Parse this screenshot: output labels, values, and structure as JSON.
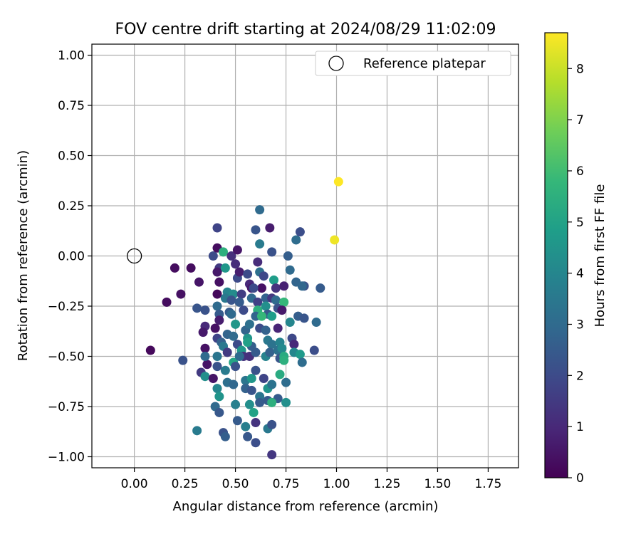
{
  "chart_data": {
    "type": "scatter",
    "title": "FOV centre drift starting at 2024/08/29 11:02:09",
    "xlabel": "Angular distance from reference (arcmin)",
    "ylabel": "Rotation from reference (arcmin)",
    "xlim": [
      -0.21,
      1.9
    ],
    "ylim": [
      -1.055,
      1.055
    ],
    "xticks": [
      0.0,
      0.25,
      0.5,
      0.75,
      1.0,
      1.25,
      1.5,
      1.75
    ],
    "xtick_labels": [
      "0.00",
      "0.25",
      "0.50",
      "0.75",
      "1.00",
      "1.25",
      "1.50",
      "1.75"
    ],
    "yticks": [
      -1.0,
      -0.75,
      -0.5,
      -0.25,
      0.0,
      0.25,
      0.5,
      0.75,
      1.0
    ],
    "ytick_labels": [
      "−1.00",
      "−0.75",
      "−0.50",
      "−0.25",
      "0.00",
      "0.25",
      "0.50",
      "0.75",
      "1.00"
    ],
    "grid": true,
    "legend": {
      "placement": "top-right",
      "entries": [
        "Reference platepar"
      ]
    },
    "reference_point": {
      "label": "Reference platepar",
      "x": 0.0,
      "y": 0.0,
      "marker": "hollow-circle"
    },
    "colorbar": {
      "label": "Hours from first FF file",
      "min": 0,
      "max": 8.7,
      "ticks": [
        0,
        1,
        2,
        3,
        4,
        5,
        6,
        7,
        8
      ],
      "tick_labels": [
        "0",
        "1",
        "2",
        "3",
        "4",
        "5",
        "6",
        "7",
        "8"
      ],
      "colormap": "viridis",
      "colors": [
        "#440154",
        "#482878",
        "#3e4989",
        "#31688e",
        "#26828e",
        "#1f9e89",
        "#35b779",
        "#6ece58",
        "#b5de2b",
        "#fde725"
      ]
    },
    "points": [
      {
        "x": 1.01,
        "y": 0.37,
        "h": 8.7
      },
      {
        "x": 0.99,
        "y": 0.08,
        "h": 8.5
      },
      {
        "x": 0.08,
        "y": -0.47,
        "h": 0.2
      },
      {
        "x": 0.16,
        "y": -0.23,
        "h": 0.3
      },
      {
        "x": 0.2,
        "y": -0.06,
        "h": 0.3
      },
      {
        "x": 0.23,
        "y": -0.19,
        "h": 0.4
      },
      {
        "x": 0.28,
        "y": -0.06,
        "h": 0.3
      },
      {
        "x": 0.32,
        "y": -0.13,
        "h": 0.5
      },
      {
        "x": 0.24,
        "y": -0.52,
        "h": 2.2
      },
      {
        "x": 0.31,
        "y": -0.26,
        "h": 2.3
      },
      {
        "x": 0.35,
        "y": -0.27,
        "h": 2.2
      },
      {
        "x": 0.35,
        "y": -0.35,
        "h": 1.0
      },
      {
        "x": 0.35,
        "y": -0.46,
        "h": 0.4
      },
      {
        "x": 0.34,
        "y": -0.38,
        "h": 0.6
      },
      {
        "x": 0.36,
        "y": -0.54,
        "h": 0.5
      },
      {
        "x": 0.33,
        "y": -0.58,
        "h": 1.5
      },
      {
        "x": 0.35,
        "y": -0.6,
        "h": 4.3
      },
      {
        "x": 0.35,
        "y": -0.5,
        "h": 3.0
      },
      {
        "x": 0.39,
        "y": -0.61,
        "h": 0.5
      },
      {
        "x": 0.31,
        "y": -0.87,
        "h": 3.6
      },
      {
        "x": 0.39,
        "y": 0.0,
        "h": 2.0
      },
      {
        "x": 0.41,
        "y": 0.14,
        "h": 1.8
      },
      {
        "x": 0.41,
        "y": 0.04,
        "h": 0.3
      },
      {
        "x": 0.42,
        "y": -0.06,
        "h": 1.5
      },
      {
        "x": 0.41,
        "y": -0.08,
        "h": 0.6
      },
      {
        "x": 0.42,
        "y": -0.13,
        "h": 0.4
      },
      {
        "x": 0.41,
        "y": -0.19,
        "h": 0.2
      },
      {
        "x": 0.41,
        "y": -0.25,
        "h": 3.0
      },
      {
        "x": 0.42,
        "y": -0.29,
        "h": 2.5
      },
      {
        "x": 0.42,
        "y": -0.32,
        "h": 0.7
      },
      {
        "x": 0.4,
        "y": -0.36,
        "h": 0.4
      },
      {
        "x": 0.41,
        "y": -0.41,
        "h": 1.8
      },
      {
        "x": 0.43,
        "y": -0.43,
        "h": 2.7
      },
      {
        "x": 0.44,
        "y": -0.45,
        "h": 3.5
      },
      {
        "x": 0.41,
        "y": -0.5,
        "h": 3.4
      },
      {
        "x": 0.41,
        "y": -0.55,
        "h": 2.2
      },
      {
        "x": 0.41,
        "y": -0.66,
        "h": 4.0
      },
      {
        "x": 0.4,
        "y": -0.75,
        "h": 3.0
      },
      {
        "x": 0.42,
        "y": -0.78,
        "h": 2.4
      },
      {
        "x": 0.42,
        "y": -0.7,
        "h": 4.5
      },
      {
        "x": 0.44,
        "y": 0.02,
        "h": 5.5
      },
      {
        "x": 0.45,
        "y": -0.06,
        "h": 4.6
      },
      {
        "x": 0.46,
        "y": -0.18,
        "h": 3.9
      },
      {
        "x": 0.45,
        "y": -0.21,
        "h": 3.5
      },
      {
        "x": 0.47,
        "y": -0.28,
        "h": 2.5
      },
      {
        "x": 0.46,
        "y": -0.39,
        "h": 2.8
      },
      {
        "x": 0.45,
        "y": -0.57,
        "h": 3.6
      },
      {
        "x": 0.46,
        "y": -0.63,
        "h": 3.2
      },
      {
        "x": 0.44,
        "y": -0.88,
        "h": 2.2
      },
      {
        "x": 0.45,
        "y": -0.9,
        "h": 2.6
      },
      {
        "x": 0.48,
        "y": 0.0,
        "h": 1.2
      },
      {
        "x": 0.49,
        "y": -0.19,
        "h": 4.2
      },
      {
        "x": 0.48,
        "y": -0.22,
        "h": 2.3
      },
      {
        "x": 0.48,
        "y": -0.29,
        "h": 3.0
      },
      {
        "x": 0.5,
        "y": -0.34,
        "h": 4.6
      },
      {
        "x": 0.49,
        "y": -0.4,
        "h": 3.0
      },
      {
        "x": 0.51,
        "y": -0.44,
        "h": 2.0
      },
      {
        "x": 0.49,
        "y": -0.53,
        "h": 5.1
      },
      {
        "x": 0.5,
        "y": -0.55,
        "h": 2.2
      },
      {
        "x": 0.49,
        "y": -0.64,
        "h": 2.9
      },
      {
        "x": 0.5,
        "y": -0.74,
        "h": 3.8
      },
      {
        "x": 0.51,
        "y": 0.03,
        "h": 0.5
      },
      {
        "x": 0.5,
        "y": -0.04,
        "h": 1.1
      },
      {
        "x": 0.51,
        "y": -0.11,
        "h": 2.0
      },
      {
        "x": 0.52,
        "y": -0.08,
        "h": 0.7
      },
      {
        "x": 0.53,
        "y": -0.19,
        "h": 1.6
      },
      {
        "x": 0.52,
        "y": -0.23,
        "h": 2.5
      },
      {
        "x": 0.54,
        "y": -0.27,
        "h": 2.0
      },
      {
        "x": 0.55,
        "y": -0.37,
        "h": 2.8
      },
      {
        "x": 0.53,
        "y": -0.47,
        "h": 4.6
      },
      {
        "x": 0.54,
        "y": -0.5,
        "h": 1.3
      },
      {
        "x": 0.55,
        "y": -0.62,
        "h": 3.4
      },
      {
        "x": 0.55,
        "y": -0.66,
        "h": 2.7
      },
      {
        "x": 0.57,
        "y": -0.74,
        "h": 4.3
      },
      {
        "x": 0.55,
        "y": -0.85,
        "h": 3.7
      },
      {
        "x": 0.51,
        "y": -0.82,
        "h": 2.5
      },
      {
        "x": 0.56,
        "y": -0.9,
        "h": 2.4
      },
      {
        "x": 0.56,
        "y": -0.09,
        "h": 2.0
      },
      {
        "x": 0.57,
        "y": -0.14,
        "h": 1.0
      },
      {
        "x": 0.58,
        "y": -0.16,
        "h": 0.6
      },
      {
        "x": 0.58,
        "y": -0.21,
        "h": 3.0
      },
      {
        "x": 0.57,
        "y": -0.34,
        "h": 3.2
      },
      {
        "x": 0.56,
        "y": -0.41,
        "h": 4.5
      },
      {
        "x": 0.58,
        "y": -0.45,
        "h": 2.6
      },
      {
        "x": 0.57,
        "y": -0.5,
        "h": 1.2
      },
      {
        "x": 0.58,
        "y": -0.61,
        "h": 4.6
      },
      {
        "x": 0.58,
        "y": -0.67,
        "h": 2.3
      },
      {
        "x": 0.59,
        "y": -0.78,
        "h": 5.0
      },
      {
        "x": 0.6,
        "y": -0.93,
        "h": 2.1
      },
      {
        "x": 0.6,
        "y": -0.83,
        "h": 1.3
      },
      {
        "x": 0.6,
        "y": 0.13,
        "h": 2.3
      },
      {
        "x": 0.62,
        "y": 0.23,
        "h": 3.0
      },
      {
        "x": 0.62,
        "y": 0.06,
        "h": 3.6
      },
      {
        "x": 0.61,
        "y": -0.03,
        "h": 1.1
      },
      {
        "x": 0.62,
        "y": -0.08,
        "h": 3.2
      },
      {
        "x": 0.61,
        "y": -0.23,
        "h": 1.7
      },
      {
        "x": 0.61,
        "y": -0.27,
        "h": 5.5
      },
      {
        "x": 0.6,
        "y": -0.3,
        "h": 2.8
      },
      {
        "x": 0.62,
        "y": -0.36,
        "h": 2.0
      },
      {
        "x": 0.6,
        "y": -0.48,
        "h": 2.5
      },
      {
        "x": 0.6,
        "y": -0.57,
        "h": 2.2
      },
      {
        "x": 0.62,
        "y": -0.7,
        "h": 3.4
      },
      {
        "x": 0.62,
        "y": -0.73,
        "h": 2.5
      },
      {
        "x": 0.64,
        "y": -0.1,
        "h": 1.9
      },
      {
        "x": 0.63,
        "y": -0.16,
        "h": 0.4
      },
      {
        "x": 0.65,
        "y": -0.21,
        "h": 2.7
      },
      {
        "x": 0.65,
        "y": -0.25,
        "h": 4.3
      },
      {
        "x": 0.66,
        "y": -0.29,
        "h": 2.4
      },
      {
        "x": 0.65,
        "y": -0.37,
        "h": 2.7
      },
      {
        "x": 0.66,
        "y": -0.42,
        "h": 3.5
      },
      {
        "x": 0.65,
        "y": -0.5,
        "h": 3.9
      },
      {
        "x": 0.64,
        "y": -0.61,
        "h": 1.8
      },
      {
        "x": 0.66,
        "y": -0.66,
        "h": 4.5
      },
      {
        "x": 0.66,
        "y": -0.72,
        "h": 2.5
      },
      {
        "x": 0.66,
        "y": -0.86,
        "h": 3.5
      },
      {
        "x": 0.67,
        "y": 0.14,
        "h": 0.7
      },
      {
        "x": 0.68,
        "y": -0.21,
        "h": 1.4
      },
      {
        "x": 0.68,
        "y": -0.3,
        "h": 4.8
      },
      {
        "x": 0.68,
        "y": -0.44,
        "h": 3.3
      },
      {
        "x": 0.67,
        "y": -0.48,
        "h": 2.7
      },
      {
        "x": 0.68,
        "y": -0.64,
        "h": 3.3
      },
      {
        "x": 0.68,
        "y": -0.84,
        "h": 2.2
      },
      {
        "x": 0.68,
        "y": -0.99,
        "h": 1.4
      },
      {
        "x": 0.68,
        "y": 0.02,
        "h": 2.2
      },
      {
        "x": 0.69,
        "y": -0.12,
        "h": 4.8
      },
      {
        "x": 0.7,
        "y": -0.16,
        "h": 1.3
      },
      {
        "x": 0.7,
        "y": -0.22,
        "h": 3.0
      },
      {
        "x": 0.71,
        "y": -0.26,
        "h": 2.2
      },
      {
        "x": 0.71,
        "y": -0.36,
        "h": 0.9
      },
      {
        "x": 0.72,
        "y": -0.43,
        "h": 3.9
      },
      {
        "x": 0.71,
        "y": -0.47,
        "h": 3.2
      },
      {
        "x": 0.72,
        "y": -0.51,
        "h": 2.3
      },
      {
        "x": 0.73,
        "y": -0.46,
        "h": 4.1
      },
      {
        "x": 0.72,
        "y": -0.59,
        "h": 5.3
      },
      {
        "x": 0.71,
        "y": -0.71,
        "h": 2.5
      },
      {
        "x": 0.68,
        "y": -0.73,
        "h": 5.5
      },
      {
        "x": 0.74,
        "y": -0.15,
        "h": 0.8
      },
      {
        "x": 0.74,
        "y": -0.23,
        "h": 5.8
      },
      {
        "x": 0.73,
        "y": -0.27,
        "h": 0.6
      },
      {
        "x": 0.74,
        "y": -0.5,
        "h": 5.3
      },
      {
        "x": 0.74,
        "y": -0.52,
        "h": 5.5
      },
      {
        "x": 0.75,
        "y": -0.63,
        "h": 3.1
      },
      {
        "x": 0.75,
        "y": -0.73,
        "h": 4.3
      },
      {
        "x": 0.76,
        "y": 0.0,
        "h": 2.6
      },
      {
        "x": 0.77,
        "y": -0.07,
        "h": 3.0
      },
      {
        "x": 0.77,
        "y": -0.33,
        "h": 4.0
      },
      {
        "x": 0.78,
        "y": -0.41,
        "h": 1.9
      },
      {
        "x": 0.79,
        "y": -0.44,
        "h": 1.0
      },
      {
        "x": 0.79,
        "y": -0.48,
        "h": 4.0
      },
      {
        "x": 0.8,
        "y": 0.08,
        "h": 3.1
      },
      {
        "x": 0.8,
        "y": -0.13,
        "h": 2.8
      },
      {
        "x": 0.81,
        "y": -0.3,
        "h": 2.6
      },
      {
        "x": 0.82,
        "y": 0.12,
        "h": 2.1
      },
      {
        "x": 0.82,
        "y": -0.49,
        "h": 4.7
      },
      {
        "x": 0.83,
        "y": -0.53,
        "h": 3.1
      },
      {
        "x": 0.84,
        "y": -0.15,
        "h": 2.2
      },
      {
        "x": 0.84,
        "y": -0.31,
        "h": 2.3
      },
      {
        "x": 0.9,
        "y": -0.33,
        "h": 3.0
      },
      {
        "x": 0.89,
        "y": -0.47,
        "h": 2.1
      },
      {
        "x": 0.92,
        "y": -0.16,
        "h": 2.5
      },
      {
        "x": 0.83,
        "y": -0.15,
        "h": 2.9
      },
      {
        "x": 0.59,
        "y": -0.16,
        "h": 2.0
      },
      {
        "x": 0.52,
        "y": -0.5,
        "h": 3.0
      },
      {
        "x": 0.46,
        "y": -0.48,
        "h": 1.5
      },
      {
        "x": 0.63,
        "y": -0.3,
        "h": 5.8
      },
      {
        "x": 0.56,
        "y": -0.43,
        "h": 4.9
      }
    ]
  }
}
